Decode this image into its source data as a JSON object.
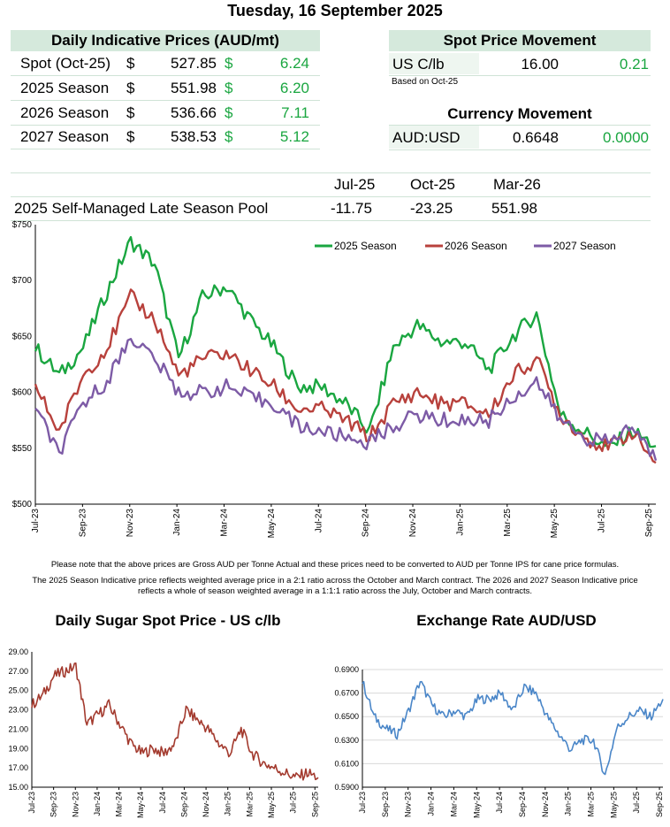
{
  "date_title": "Tuesday, 16 September 2025",
  "daily_prices": {
    "heading": "Daily Indicative Prices (AUD/mt)",
    "rows": [
      {
        "label": "Spot (Oct-25)",
        "cur": "$",
        "price": "527.85",
        "cur2": "$",
        "change": "6.24"
      },
      {
        "label": "2025 Season",
        "cur": "$",
        "price": "551.98",
        "cur2": "$",
        "change": "6.20"
      },
      {
        "label": "2026 Season",
        "cur": "$",
        "price": "536.66",
        "cur2": "$",
        "change": "7.11"
      },
      {
        "label": "2027 Season",
        "cur": "$",
        "price": "538.53",
        "cur2": "$",
        "change": "5.12"
      }
    ]
  },
  "spot_movement": {
    "heading": "Spot Price Movement",
    "label": "US C/lb",
    "value": "16.00",
    "change": "0.21",
    "footnote": "Based on Oct-25"
  },
  "currency_movement": {
    "heading": "Currency Movement",
    "label": "AUD:USD",
    "value": "0.6648",
    "change": "0.0000"
  },
  "pool": {
    "headers": [
      "Jul-25",
      "Oct-25",
      "Mar-26"
    ],
    "label": "2025 Self-Managed Late Season Pool",
    "values": [
      "-11.75",
      "-23.25",
      "551.98"
    ]
  },
  "notes": {
    "line1": "Please note that the above prices are Gross AUD per Tonne Actual and these prices need to be converted to AUD per Tonne IPS for cane price formulas.",
    "line2": "The 2025 Season Indicative price reflects weighted average price in a 2:1 ratio across the October and March contract. The 2026 and 2027 Season Indicative price",
    "line3": "reflects a whole of season weighted average in a 1:1:1 ratio across the July, October and March contracts."
  },
  "colors": {
    "green": "#1aa640",
    "red": "#b8413c",
    "purple": "#7d5ba6",
    "brown": "#a33a2e",
    "blue": "#4a86c8",
    "band": "#d5e9dc"
  },
  "chart_data": [
    {
      "type": "line",
      "title": "",
      "ylim": [
        500,
        750
      ],
      "yticks": [
        "$500",
        "$550",
        "$600",
        "$650",
        "$700",
        "$750"
      ],
      "xticks": [
        "Jul-23",
        "Sep-23",
        "Nov-23",
        "Jan-24",
        "Mar-24",
        "May-24",
        "Jul-24",
        "Sep-24",
        "Nov-24",
        "Jan-25",
        "Mar-25",
        "May-25",
        "Jul-25",
        "Sep-25"
      ],
      "legend_position": "top-right",
      "x": [
        "Jul-23",
        "Aug-23",
        "Sep-23",
        "Oct-23",
        "Nov-23",
        "Dec-23",
        "Jan-24",
        "Feb-24",
        "Mar-24",
        "Apr-24",
        "May-24",
        "Jun-24",
        "Jul-24",
        "Aug-24",
        "Sep-24",
        "Oct-24",
        "Nov-24",
        "Dec-24",
        "Jan-25",
        "Feb-25",
        "Mar-25",
        "Apr-25",
        "May-25",
        "Jun-25",
        "Jul-25",
        "Aug-25",
        "Sep-25"
      ],
      "series": [
        {
          "name": "2025 Season",
          "color": "#1aa640",
          "values": [
            640,
            615,
            640,
            690,
            735,
            715,
            630,
            685,
            695,
            665,
            640,
            605,
            605,
            590,
            565,
            640,
            660,
            645,
            645,
            620,
            650,
            670,
            580,
            565,
            550,
            565,
            552
          ]
        },
        {
          "name": "2026 Season",
          "color": "#b8413c",
          "values": [
            605,
            565,
            615,
            640,
            685,
            665,
            615,
            630,
            635,
            620,
            605,
            585,
            585,
            575,
            560,
            590,
            600,
            590,
            590,
            580,
            615,
            630,
            580,
            560,
            550,
            565,
            537
          ]
        },
        {
          "name": "2027 Season",
          "color": "#7d5ba6",
          "values": [
            585,
            545,
            590,
            610,
            650,
            630,
            600,
            600,
            605,
            595,
            590,
            570,
            565,
            560,
            555,
            570,
            580,
            575,
            575,
            575,
            595,
            610,
            575,
            560,
            555,
            570,
            539
          ]
        }
      ]
    },
    {
      "type": "line",
      "title": "Daily Sugar Spot Price - US c/lb",
      "ylim": [
        15,
        29
      ],
      "yticks": [
        "15.00",
        "17.00",
        "19.00",
        "21.00",
        "23.00",
        "25.00",
        "27.00",
        "29.00"
      ],
      "xticks": [
        "Jul-23",
        "Sep-23",
        "Nov-23",
        "Jan-24",
        "Mar-24",
        "May-24",
        "Jul-24",
        "Sep-24",
        "Nov-24",
        "Jan-25",
        "Mar-25",
        "May-25",
        "Jul-25",
        "Sep-25"
      ],
      "x": [
        "Jul-23",
        "Aug-23",
        "Sep-23",
        "Oct-23",
        "Nov-23",
        "Dec-23",
        "Jan-24",
        "Feb-24",
        "Mar-24",
        "Apr-24",
        "May-24",
        "Jun-24",
        "Jul-24",
        "Aug-24",
        "Sep-24",
        "Oct-24",
        "Nov-24",
        "Dec-24",
        "Jan-25",
        "Feb-25",
        "Mar-25",
        "Apr-25",
        "May-25",
        "Jun-25",
        "Jul-25",
        "Aug-25",
        "Sep-25"
      ],
      "series": [
        {
          "name": "",
          "color": "#a33a2e",
          "values": [
            23.5,
            24.5,
            26.5,
            27.0,
            27.5,
            21.5,
            22.5,
            23.5,
            21.5,
            19.5,
            18.5,
            19.0,
            18.5,
            19.5,
            23.0,
            22.0,
            21.0,
            19.5,
            18.5,
            21.0,
            18.5,
            17.5,
            17.0,
            16.5,
            16.0,
            16.5,
            16.0
          ]
        }
      ]
    },
    {
      "type": "line",
      "title": "Exchange Rate AUD/USD",
      "ylim": [
        0.59,
        0.69
      ],
      "yticks": [
        "0.5900",
        "0.6100",
        "0.6300",
        "0.6500",
        "0.6700",
        "0.6900"
      ],
      "xticks": [
        "Jul-23",
        "Sep-23",
        "Nov-23",
        "Jan-24",
        "Mar-24",
        "May-24",
        "Jul-24",
        "Sep-24",
        "Nov-24",
        "Jan-25",
        "Mar-25",
        "May-25",
        "Jul-25",
        "Sep-25"
      ],
      "x": [
        "Jul-23",
        "Aug-23",
        "Sep-23",
        "Oct-23",
        "Nov-23",
        "Dec-23",
        "Jan-24",
        "Feb-24",
        "Mar-24",
        "Apr-24",
        "May-24",
        "Jun-24",
        "Jul-24",
        "Aug-24",
        "Sep-24",
        "Oct-24",
        "Nov-24",
        "Dec-24",
        "Jan-25",
        "Feb-25",
        "Mar-25",
        "Apr-25",
        "May-25",
        "Jun-25",
        "Jul-25",
        "Aug-25",
        "Sep-25"
      ],
      "series": [
        {
          "name": "",
          "color": "#4a86c8",
          "values": [
            0.68,
            0.65,
            0.64,
            0.635,
            0.655,
            0.68,
            0.66,
            0.65,
            0.655,
            0.65,
            0.665,
            0.665,
            0.67,
            0.655,
            0.675,
            0.67,
            0.65,
            0.635,
            0.622,
            0.63,
            0.63,
            0.6,
            0.64,
            0.65,
            0.655,
            0.65,
            0.6648
          ]
        }
      ]
    }
  ]
}
